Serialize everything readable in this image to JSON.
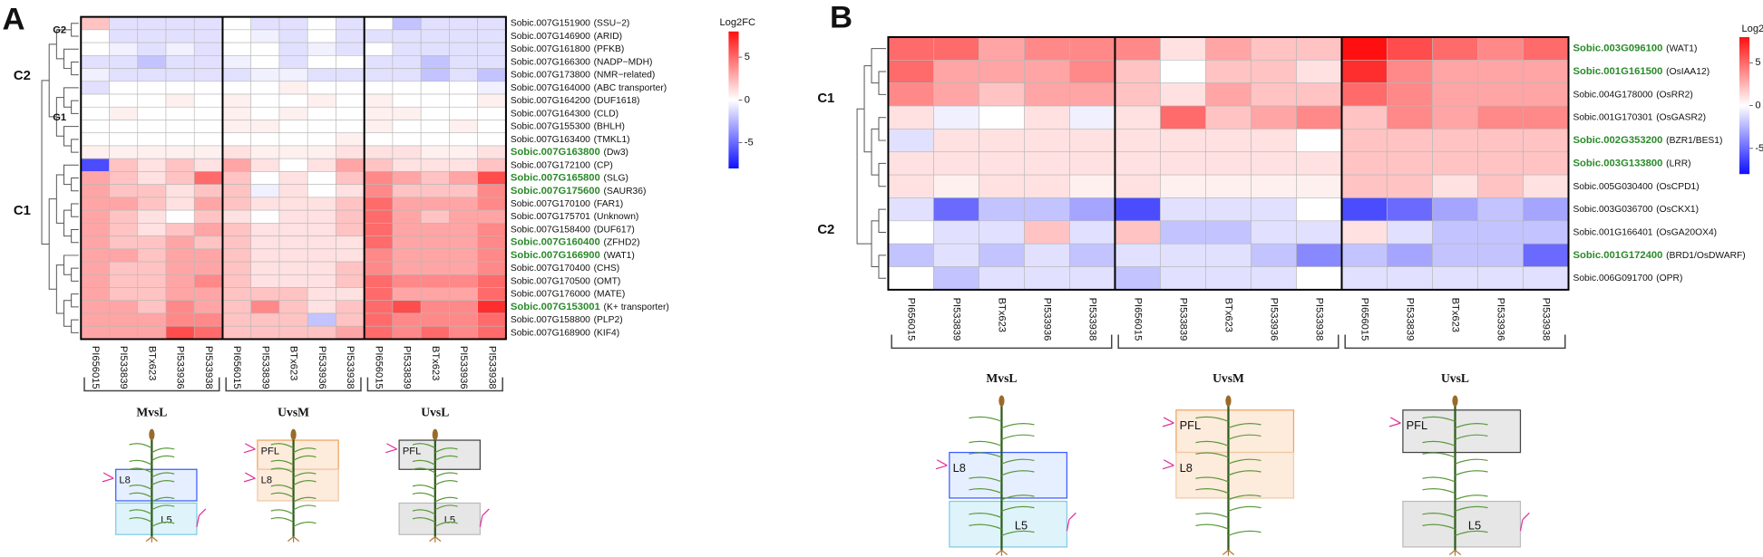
{
  "chart_data": [
    {
      "type": "heatmap",
      "panel": "A",
      "rows": [
        "Sobic.007G151900",
        "Sobic.007G146900",
        "Sobic.007G161800",
        "Sobic.007G166300",
        "Sobic.007G173800",
        "Sobic.007G164000",
        "Sobic.007G164200",
        "Sobic.007G164300",
        "Sobic.007G155300",
        "Sobic.007G163400",
        "Sobic.007G163800",
        "Sobic.007G172100",
        "Sobic.007G165800",
        "Sobic.007G175600",
        "Sobic.007G170100",
        "Sobic.007G175701",
        "Sobic.007G158400",
        "Sobic.007G160400",
        "Sobic.007G166900",
        "Sobic.007G170400",
        "Sobic.007G170500",
        "Sobic.007G176000",
        "Sobic.007G153001",
        "Sobic.007G158800",
        "Sobic.007G168900"
      ],
      "row_notes": [
        "(SSU−2)",
        "(ARID)",
        "(PFKB)",
        "(NADP−MDH)",
        "(NMR−related)",
        "(ABC transporter)",
        "(DUF1618)",
        "(CLD)",
        "(BHLH)",
        "(TMKL1)",
        "(Dw3)",
        "(CP)",
        "(SLG)",
        "(SAUR36)",
        "(FAR1)",
        "(Unknown)",
        "(DUF617)",
        "(ZFHD2)",
        "(WAT1)",
        "(CHS)",
        "(OMT)",
        "(MATE)",
        "(K+ transporter)",
        "(PLP2)",
        "(KIF4)"
      ],
      "highlight": [
        false,
        false,
        false,
        false,
        false,
        false,
        false,
        false,
        false,
        false,
        true,
        false,
        true,
        true,
        false,
        false,
        false,
        true,
        true,
        false,
        false,
        false,
        true,
        false,
        false
      ],
      "columns": [
        "PI656015",
        "PI533839",
        "BTx623",
        "PI533936",
        "PI533938",
        "PI656015",
        "PI533839",
        "BTx623",
        "PI533936",
        "PI533938",
        "PI656015",
        "PI533839",
        "BTx623",
        "PI533936",
        "PI533938"
      ],
      "groups": [
        "MvsL",
        "UvsM",
        "UvsL"
      ],
      "clusters": [
        "G2",
        "G1",
        "C2",
        "C1"
      ],
      "region_labels": [
        [
          "L8",
          "L5"
        ],
        [
          "PFL",
          "L8"
        ],
        [
          "PFL",
          "L5"
        ]
      ],
      "values": [
        [
          2,
          -1,
          -1,
          -1,
          -1,
          0,
          -1,
          -1,
          0,
          -1,
          0,
          -2,
          -1,
          -1,
          -1
        ],
        [
          0,
          -1,
          -1,
          -1,
          -1,
          0,
          -0.5,
          -1,
          0,
          -1,
          -1,
          -1,
          -1,
          -1,
          -1
        ],
        [
          0,
          -0.5,
          -1,
          -0.5,
          -1,
          0,
          0,
          -1,
          -0.5,
          -1,
          0,
          -1,
          -1,
          -1,
          -1
        ],
        [
          -1,
          -1,
          -2,
          -1,
          -1,
          -0.5,
          0,
          -1,
          0,
          0,
          -1,
          -1,
          -2,
          -1,
          -1
        ],
        [
          -0.5,
          -1,
          -1,
          -1,
          -1,
          -1,
          -0.5,
          -0.5,
          -1,
          -1,
          -1,
          -1,
          -2,
          -1,
          -2
        ],
        [
          -1,
          0,
          0,
          0,
          0,
          0,
          0,
          0.5,
          0,
          0,
          0,
          0,
          0,
          0,
          -0.5
        ],
        [
          0,
          0,
          0,
          0.5,
          0,
          0.5,
          0,
          0,
          0.5,
          0,
          0.5,
          0,
          0,
          0,
          0.5
        ],
        [
          0,
          0.5,
          0,
          0,
          0,
          0.5,
          0,
          0.5,
          0,
          0,
          0.5,
          0.5,
          0,
          0,
          0
        ],
        [
          0,
          0,
          0,
          0,
          0,
          0.5,
          0.5,
          0,
          0,
          0,
          0.5,
          0,
          0,
          0.5,
          0
        ],
        [
          0,
          0,
          0,
          0,
          0,
          0,
          0,
          0,
          0,
          0.5,
          0,
          0,
          0,
          0,
          0
        ],
        [
          0.5,
          0.5,
          0.5,
          0.5,
          0.5,
          1,
          0.5,
          0.5,
          0.5,
          1,
          1,
          1,
          0.5,
          0.5,
          1
        ],
        [
          -6,
          2,
          1,
          2,
          1,
          3,
          1,
          0,
          1,
          3,
          2,
          1,
          1,
          1,
          2
        ],
        [
          3,
          2,
          1,
          2,
          5,
          2,
          0,
          1,
          0,
          2,
          4,
          3,
          2,
          3,
          6
        ],
        [
          3,
          2,
          2,
          1,
          2,
          2,
          -0.5,
          1,
          0,
          1,
          4,
          2,
          2,
          2,
          4
        ],
        [
          3,
          3,
          2,
          1,
          3,
          2,
          1,
          1,
          1,
          2,
          5,
          3,
          3,
          3,
          4
        ],
        [
          3,
          2,
          1,
          0,
          2,
          1,
          0,
          1,
          1,
          2,
          5,
          3,
          2,
          3,
          3
        ],
        [
          3,
          2,
          1,
          2,
          3,
          2,
          1,
          1,
          1,
          2,
          5,
          3,
          3,
          3,
          4
        ],
        [
          3,
          2,
          2,
          3,
          2,
          2,
          1,
          1,
          1,
          1,
          5,
          3,
          3,
          3,
          4
        ],
        [
          3,
          3,
          2,
          3,
          3,
          2,
          1,
          1,
          1,
          1,
          4,
          3,
          3,
          3,
          4
        ],
        [
          3,
          2,
          2,
          3,
          3,
          2,
          1,
          1,
          1,
          2,
          4,
          3,
          3,
          3,
          4
        ],
        [
          3,
          2,
          2,
          3,
          4,
          2,
          1,
          1,
          1,
          2,
          5,
          4,
          4,
          4,
          5
        ],
        [
          3,
          2,
          2,
          3,
          3,
          2,
          2,
          2,
          1,
          1,
          5,
          3,
          3,
          3,
          5
        ],
        [
          3,
          3,
          2,
          4,
          3,
          2,
          4,
          2,
          1,
          2,
          5,
          6,
          4,
          4,
          7
        ],
        [
          3,
          3,
          3,
          4,
          4,
          2,
          2,
          2,
          -2,
          2,
          5,
          4,
          4,
          4,
          5
        ],
        [
          3,
          3,
          3,
          6,
          5,
          2,
          2,
          2,
          2,
          3,
          5,
          4,
          5,
          4,
          5
        ]
      ],
      "zlim": [
        -8,
        8
      ],
      "colorbar_title": "Log2FC",
      "colorbar_ticks": [
        5,
        0,
        -5
      ],
      "colors": [
        "#1010ff",
        "#ffffff",
        "#ff1010"
      ],
      "highlight_color": "#2a8a2a"
    },
    {
      "type": "heatmap",
      "panel": "B",
      "rows": [
        "Sobic.003G096100",
        "Sobic.001G161500",
        "Sobic.004G178000",
        "Sobic.001G170301",
        "Sobic.002G353200",
        "Sobic.003G133800",
        "Sobic.005G030400",
        "Sobic.003G036700",
        "Sobic.001G166401",
        "Sobic.001G172400",
        "Sobic.006G091700"
      ],
      "row_notes": [
        "(WAT1)",
        "(OsIAA12)",
        "(OsRR2)",
        "(OsGASR2)",
        "(BZR1/BES1)",
        "(LRR)",
        "(OsCPD1)",
        "(OsCKX1)",
        "(OsGA20OX4)",
        "(BRD1/OsDWARF)",
        "(OPR)"
      ],
      "highlight": [
        true,
        true,
        false,
        false,
        true,
        true,
        false,
        false,
        false,
        true,
        false
      ],
      "columns": [
        "PI656015",
        "PI533839",
        "BTx623",
        "PI533936",
        "PI533938",
        "PI656015",
        "PI533839",
        "BTx623",
        "PI533936",
        "PI533938",
        "PI656015",
        "PI533839",
        "BTx623",
        "PI533936",
        "PI533938"
      ],
      "groups": [
        "MvsL",
        "UvsM",
        "UvsL"
      ],
      "clusters": [
        "C1",
        "C2"
      ],
      "region_labels": [
        [
          "L8",
          "L5"
        ],
        [
          "PFL",
          "L8"
        ],
        [
          "PFL",
          "L5"
        ]
      ],
      "values": [
        [
          5,
          5,
          3,
          4,
          4,
          4,
          1,
          3,
          2,
          2,
          8,
          6,
          5,
          4,
          5
        ],
        [
          5,
          3,
          3,
          3,
          4,
          2,
          0,
          2,
          2,
          1,
          7,
          4,
          3,
          3,
          3
        ],
        [
          4,
          3,
          2,
          3,
          3,
          2,
          1,
          3,
          2,
          2,
          5,
          4,
          3,
          3,
          3
        ],
        [
          1,
          -0.5,
          0,
          1,
          -0.5,
          1,
          5,
          2,
          3,
          4,
          2,
          4,
          3,
          4,
          4
        ],
        [
          -1,
          1,
          1,
          1,
          1,
          1,
          1,
          1,
          1,
          0,
          2,
          2,
          2,
          2,
          2
        ],
        [
          1,
          1,
          1,
          1,
          1,
          1,
          1,
          1,
          1,
          1,
          2,
          2,
          2,
          2,
          2
        ],
        [
          1,
          0.5,
          1,
          1,
          0.5,
          1,
          0.5,
          0.5,
          0.5,
          0.5,
          2,
          2,
          1,
          2,
          1
        ],
        [
          -1,
          -5,
          -2,
          -2,
          -3,
          -6,
          -1,
          -1,
          -1,
          0,
          -6,
          -5,
          -3,
          -2,
          -3
        ],
        [
          0,
          -1,
          -1,
          2,
          -1,
          2,
          -2,
          -2,
          -1,
          -1,
          1,
          -1,
          -2,
          -2,
          -2
        ],
        [
          -2,
          -1,
          -2,
          -1,
          -2,
          -1,
          -1,
          -1,
          -2,
          -4,
          -2,
          -3,
          -2,
          -2,
          -5
        ],
        [
          0,
          -2,
          -1,
          -1,
          -1,
          -2,
          -1,
          -1,
          -1,
          0,
          -1,
          -1,
          -1,
          -1,
          -1
        ]
      ],
      "zlim": [
        -8,
        8
      ],
      "colorbar_title": "Log2FC",
      "colorbar_ticks": [
        5,
        0,
        -5
      ],
      "colors": [
        "#1010ff",
        "#ffffff",
        "#ff1010"
      ],
      "highlight_color": "#2a8a2a"
    }
  ]
}
